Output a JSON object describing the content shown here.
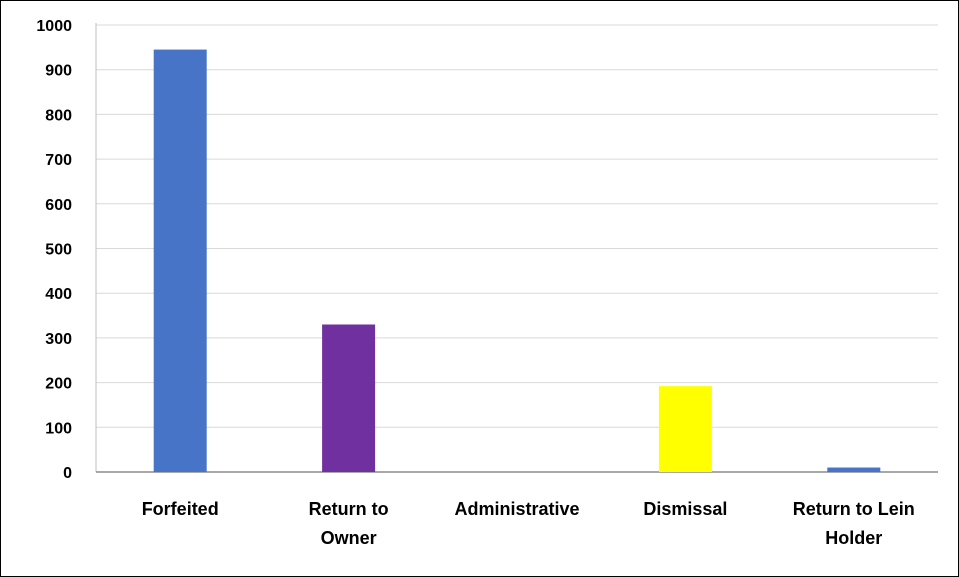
{
  "chart_data": {
    "type": "bar",
    "categories": [
      "Forfeited",
      "Return to Owner",
      "Administrative",
      "Dismissal",
      "Return to Lein Holder"
    ],
    "category_label_lines": [
      [
        "Forfeited"
      ],
      [
        "Return to",
        "Owner"
      ],
      [
        "Administrative"
      ],
      [
        "Dismissal"
      ],
      [
        "Return to Lein",
        "Holder"
      ]
    ],
    "values": [
      945,
      330,
      0,
      192,
      10
    ],
    "bar_colors": [
      "#4874c7",
      "#70309f",
      "#4874c7",
      "#ffff00",
      "#4874c7"
    ],
    "ylim": [
      0,
      1000
    ],
    "yticks": [
      0,
      100,
      200,
      300,
      400,
      500,
      600,
      700,
      800,
      900,
      1000
    ],
    "grid": true,
    "title": "",
    "xlabel": "",
    "ylabel": ""
  }
}
